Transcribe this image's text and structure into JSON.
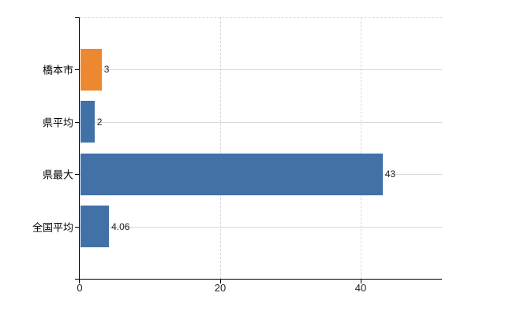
{
  "chart_data": {
    "type": "bar",
    "orientation": "horizontal",
    "title": "",
    "categories": [
      "橋本市",
      "県平均",
      "県最大",
      "全国平均"
    ],
    "series": [
      {
        "name": "values",
        "values": [
          3,
          2,
          43,
          4.06
        ]
      }
    ],
    "value_labels": [
      "3",
      "2",
      "43",
      "4.06"
    ],
    "bar_colors": [
      "#ec8830",
      "#4271a8",
      "#4271a8",
      "#4271a8"
    ],
    "x_axis": {
      "ticks": [
        0,
        20,
        40
      ],
      "tick_labels": [
        "0",
        "20",
        "40"
      ],
      "range": [
        0,
        51.6
      ]
    },
    "y_axis": {
      "label": ""
    },
    "legend": "none",
    "grid": {
      "horizontal_style": "solid",
      "vertical_style": "dashed",
      "top_border_style": "dashed"
    },
    "colors": {
      "highlight_bar": "#ec8830",
      "default_bar": "#4271a8",
      "grid_solid": "#d5dbd5",
      "grid_dashed": "#d6d6d6",
      "axis": "#000000",
      "value_text": "#222222",
      "category_text": "#000000",
      "tick_text": "#222222",
      "background": "#ffffff"
    }
  }
}
